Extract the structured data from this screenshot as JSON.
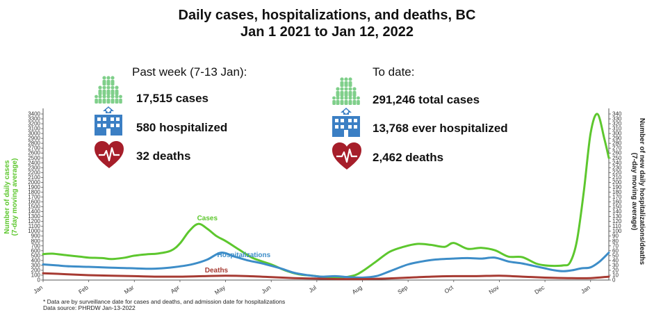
{
  "title_line1": "Daily cases, hospitalizations, and deaths, BC",
  "title_line2": "Jan 1 2021 to Jan 12, 2022",
  "past_week": {
    "heading": "Past week (7-13 Jan):",
    "cases": "17,515 cases",
    "hospitalized": "580 hospitalized",
    "deaths": "32 deaths"
  },
  "to_date": {
    "heading": "To date:",
    "cases": "291,246 total cases",
    "hospitalized": "13,768 ever hospitalized",
    "deaths": "2,462 deaths"
  },
  "footnote1": "* Data are by surveillance date for cases and deaths, and admission date for hospitalizations",
  "footnote2": "Data source: PHRDW Jan-13-2022",
  "colors": {
    "cases": "#5dc72e",
    "hosp": "#3d8dc8",
    "deaths": "#a63a32",
    "icon_green": "#7fcf8a",
    "icon_blue": "#3b7fc4",
    "heart": "#a61e2a"
  },
  "chart_data": {
    "type": "line",
    "ylabel_left": [
      "Number of daily cases",
      "(7-day moving average)"
    ],
    "ylabel_right": [
      "Number of new daily hospitalizations/deaths",
      "(7-day moving average)"
    ],
    "y_left_range": [
      0,
      3400
    ],
    "y_right_range": [
      0,
      340
    ],
    "y_left_ticks": [
      "0",
      "100",
      "200",
      "300",
      "400",
      "500",
      "600",
      "700",
      "800",
      "900",
      "1000",
      "1100",
      "1200",
      "1300",
      "1400",
      "1500",
      "1600",
      "1700",
      "1800",
      "1900",
      "2000",
      "2100",
      "2200",
      "2300",
      "2400",
      "2500",
      "2600",
      "2700",
      "2800",
      "2900",
      "3000",
      "3100",
      "3200",
      "3300",
      "3400"
    ],
    "y_right_ticks": [
      "0",
      "10",
      "20",
      "30",
      "40",
      "50",
      "60",
      "70",
      "80",
      "90",
      "100",
      "110",
      "120",
      "130",
      "140",
      "150",
      "160",
      "170",
      "180",
      "190",
      "200",
      "210",
      "220",
      "230",
      "240",
      "250",
      "260",
      "270",
      "280",
      "290",
      "300",
      "310",
      "320",
      "330",
      "340"
    ],
    "x_ticks": [
      "Jan",
      "Feb",
      "Mar",
      "Apr",
      "May",
      "Jun",
      "Jul",
      "Aug",
      "Sep",
      "Oct",
      "Nov",
      "Dec",
      "Jan"
    ],
    "x_range": [
      0,
      12.4
    ],
    "series": [
      {
        "name": "Cases",
        "label": "Cases",
        "axis": "left",
        "color_key": "cases",
        "x": [
          0,
          0.2,
          0.5,
          0.8,
          1.0,
          1.3,
          1.5,
          1.8,
          2.0,
          2.3,
          2.5,
          2.8,
          3.0,
          3.2,
          3.4,
          3.6,
          3.8,
          4.0,
          4.3,
          4.6,
          5.0,
          5.3,
          5.6,
          5.9,
          6.2,
          6.5,
          6.8,
          7.0,
          7.3,
          7.6,
          7.9,
          8.2,
          8.5,
          8.8,
          9.0,
          9.3,
          9.6,
          9.9,
          10.2,
          10.5,
          10.8,
          11.0,
          11.2,
          11.4,
          11.55,
          11.7,
          11.85,
          12.0,
          12.15,
          12.3,
          12.4
        ],
        "values": [
          530,
          540,
          510,
          480,
          460,
          450,
          430,
          460,
          500,
          530,
          540,
          600,
          750,
          1000,
          1150,
          1050,
          900,
          800,
          620,
          450,
          320,
          200,
          120,
          90,
          60,
          50,
          90,
          180,
          380,
          580,
          680,
          740,
          720,
          680,
          760,
          640,
          660,
          610,
          480,
          470,
          340,
          300,
          290,
          300,
          360,
          800,
          1800,
          3000,
          3400,
          2900,
          2500
        ]
      },
      {
        "name": "Hospitalizations",
        "label": "Hospitalizations",
        "axis": "right",
        "color_key": "hosp",
        "x": [
          0,
          0.3,
          0.6,
          1.0,
          1.3,
          1.6,
          2.0,
          2.3,
          2.6,
          3.0,
          3.3,
          3.6,
          3.9,
          4.2,
          4.5,
          4.8,
          5.2,
          5.5,
          5.8,
          6.1,
          6.4,
          6.7,
          7.0,
          7.3,
          7.6,
          8.0,
          8.3,
          8.6,
          9.0,
          9.3,
          9.6,
          9.9,
          10.2,
          10.5,
          10.8,
          11.0,
          11.2,
          11.4,
          11.6,
          11.8,
          12.0,
          12.2,
          12.4
        ],
        "values": [
          32,
          30,
          28,
          27,
          26,
          25,
          24,
          23,
          24,
          28,
          33,
          42,
          56,
          48,
          40,
          34,
          24,
          15,
          10,
          7,
          8,
          6,
          5,
          8,
          18,
          32,
          38,
          42,
          44,
          45,
          44,
          46,
          38,
          34,
          28,
          24,
          20,
          18,
          20,
          24,
          26,
          38,
          56
        ]
      },
      {
        "name": "Deaths",
        "label": "Deaths",
        "axis": "right",
        "color_key": "deaths",
        "x": [
          0,
          0.5,
          1.0,
          1.5,
          2.0,
          2.5,
          3.0,
          3.5,
          4.0,
          4.5,
          5.0,
          5.5,
          6.0,
          6.5,
          7.0,
          7.5,
          8.0,
          8.5,
          9.0,
          9.5,
          10.0,
          10.5,
          11.0,
          11.5,
          12.0,
          12.4
        ],
        "values": [
          14,
          12,
          10,
          9,
          8,
          7,
          7,
          8,
          9,
          8,
          6,
          4,
          3,
          2,
          2,
          3,
          5,
          7,
          8,
          8,
          9,
          7,
          5,
          4,
          4,
          7
        ]
      }
    ]
  }
}
